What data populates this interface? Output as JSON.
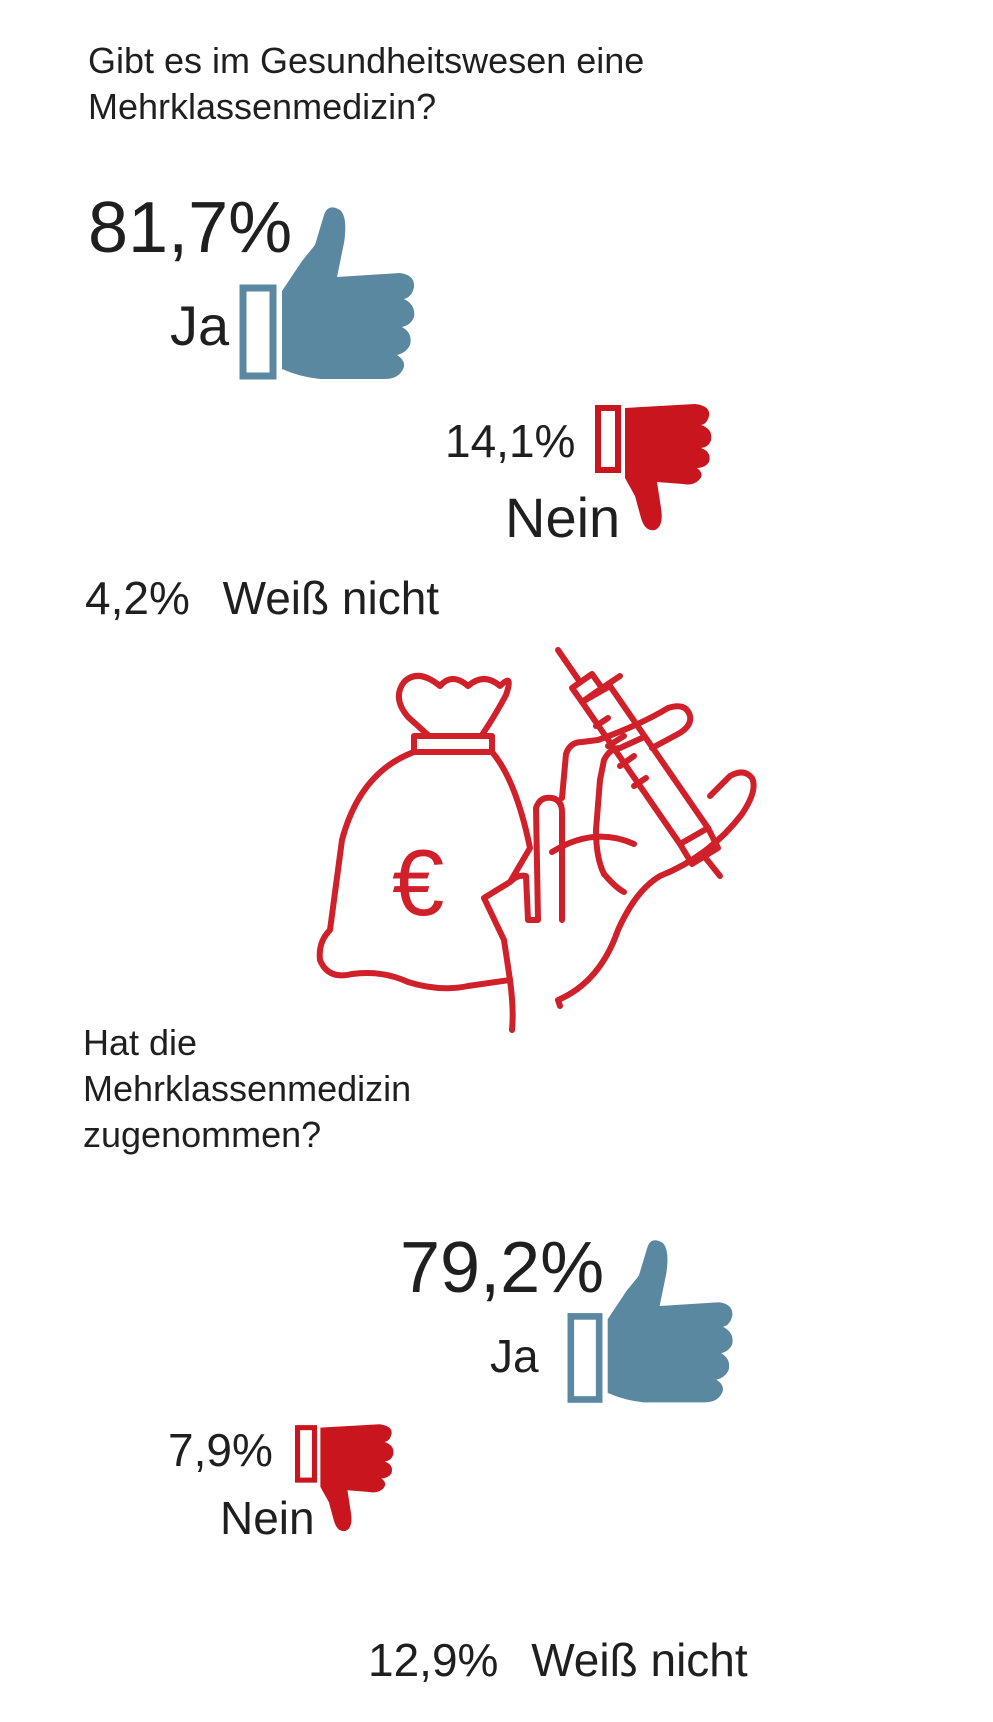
{
  "colors": {
    "yes": "#5a88a0",
    "no": "#c9161e",
    "text": "#1f1f1f",
    "illustration": "#d0202a"
  },
  "icons": [
    "thumbs-up-icon",
    "thumbs-down-icon",
    "money-bag-icon",
    "euro-icon",
    "syringe-icon",
    "hand-icon"
  ],
  "question1": {
    "text_line1": "Gibt es im Gesundheitswesen eine",
    "text_line2": "Mehrklassenmedizin?",
    "yes": {
      "value": "81,7%",
      "label": "Ja"
    },
    "no": {
      "value": "14,1%",
      "label": "Nein"
    },
    "unknown": {
      "value": "4,2%",
      "label": "Weiß nicht"
    }
  },
  "illustration": {
    "currency_symbol": "€"
  },
  "question2": {
    "text_line1": "Hat die",
    "text_line2": "Mehrklassenmedizin",
    "text_line3": "zugenommen?",
    "yes": {
      "value": "79,2%",
      "label": "Ja"
    },
    "no": {
      "value": "7,9%",
      "label": "Nein"
    },
    "unknown": {
      "value": "12,9%",
      "label": "Weiß nicht"
    }
  }
}
